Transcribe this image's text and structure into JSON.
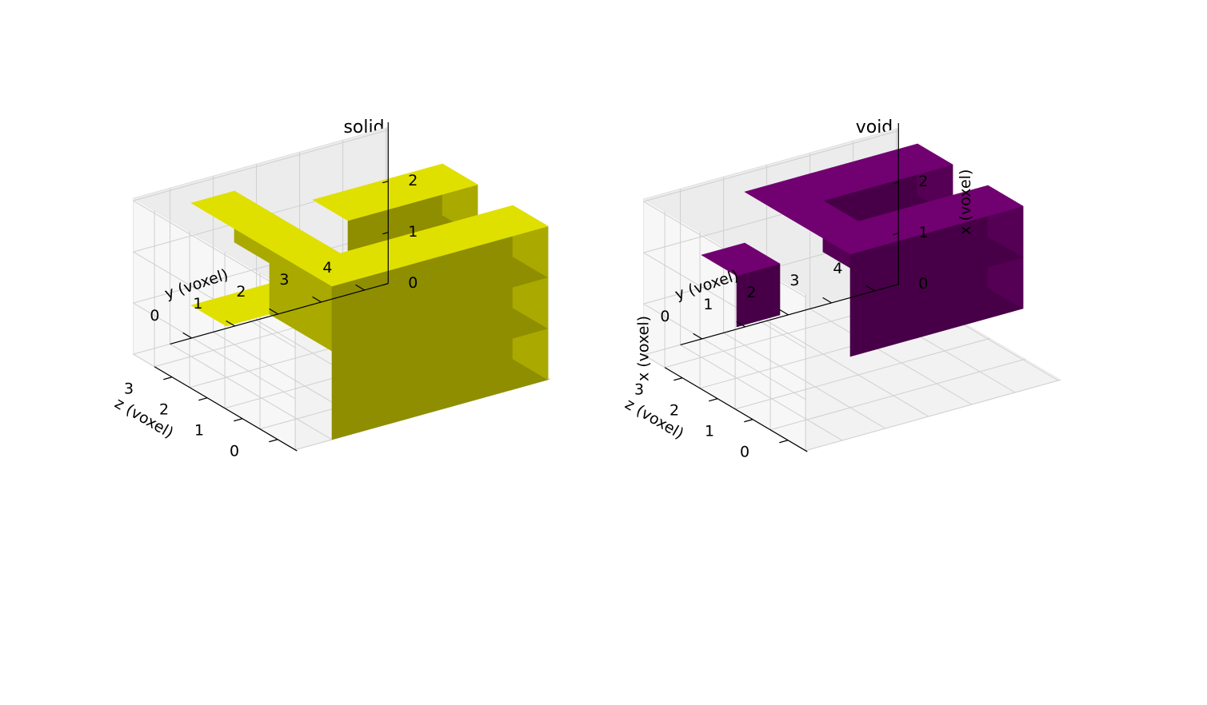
{
  "chart_data": [
    {
      "type": "voxel",
      "title": "solid",
      "color": "#e5e500",
      "xlabel": "",
      "ylabel": "y (voxel)",
      "zlabel": "z (voxel)",
      "xlim": [
        0,
        3
      ],
      "ylim": [
        0,
        5
      ],
      "zlim": [
        0,
        4
      ],
      "x_ticks": [
        "0",
        "1",
        "2"
      ],
      "y_ticks": [
        "0",
        "1",
        "2",
        "3",
        "4"
      ],
      "z_ticks": [
        "0",
        "1",
        "2",
        "3"
      ],
      "grid": true,
      "note_axes": "each voxel value: 1 = filled; grid indexed [x][y][z]",
      "voxels": [
        [
          [
            1,
            1,
            1,
            1
          ],
          [
            1,
            1,
            1,
            1
          ],
          [
            1,
            1,
            1,
            1
          ],
          [
            1,
            1,
            1,
            1
          ],
          [
            1,
            1,
            1,
            1
          ]
        ],
        [
          [
            1,
            1,
            1,
            0
          ],
          [
            1,
            0,
            0,
            0
          ],
          [
            1,
            0,
            0,
            0
          ],
          [
            1,
            0,
            0,
            0
          ],
          [
            1,
            0,
            0,
            0
          ]
        ],
        [
          [
            1,
            1,
            1,
            1
          ],
          [
            1,
            0,
            0,
            0
          ],
          [
            1,
            0,
            1,
            0
          ],
          [
            1,
            0,
            1,
            0
          ],
          [
            1,
            0,
            1,
            0
          ]
        ]
      ]
    },
    {
      "type": "voxel",
      "title": "void",
      "color": "#730073",
      "xlabel": "x (voxel)",
      "ylabel": "y (voxel)",
      "zlabel": "z (voxel)",
      "xlim": [
        0,
        3
      ],
      "ylim": [
        0,
        5
      ],
      "zlim": [
        0,
        4
      ],
      "x_ticks": [
        "0",
        "1",
        "2"
      ],
      "y_ticks": [
        "0",
        "1",
        "2",
        "3",
        "4"
      ],
      "z_ticks": [
        "0",
        "1",
        "2",
        "3"
      ],
      "grid": true,
      "voxels": [
        [
          [
            0,
            0,
            0,
            0
          ],
          [
            0,
            0,
            0,
            0
          ],
          [
            0,
            0,
            0,
            0
          ],
          [
            0,
            0,
            0,
            0
          ],
          [
            0,
            0,
            0,
            0
          ]
        ],
        [
          [
            0,
            0,
            0,
            1
          ],
          [
            0,
            1,
            1,
            1
          ],
          [
            0,
            1,
            1,
            1
          ],
          [
            0,
            1,
            1,
            1
          ],
          [
            0,
            1,
            1,
            1
          ]
        ],
        [
          [
            0,
            0,
            0,
            0
          ],
          [
            0,
            1,
            1,
            1
          ],
          [
            0,
            1,
            0,
            1
          ],
          [
            0,
            1,
            0,
            1
          ],
          [
            0,
            1,
            0,
            1
          ]
        ]
      ]
    }
  ]
}
